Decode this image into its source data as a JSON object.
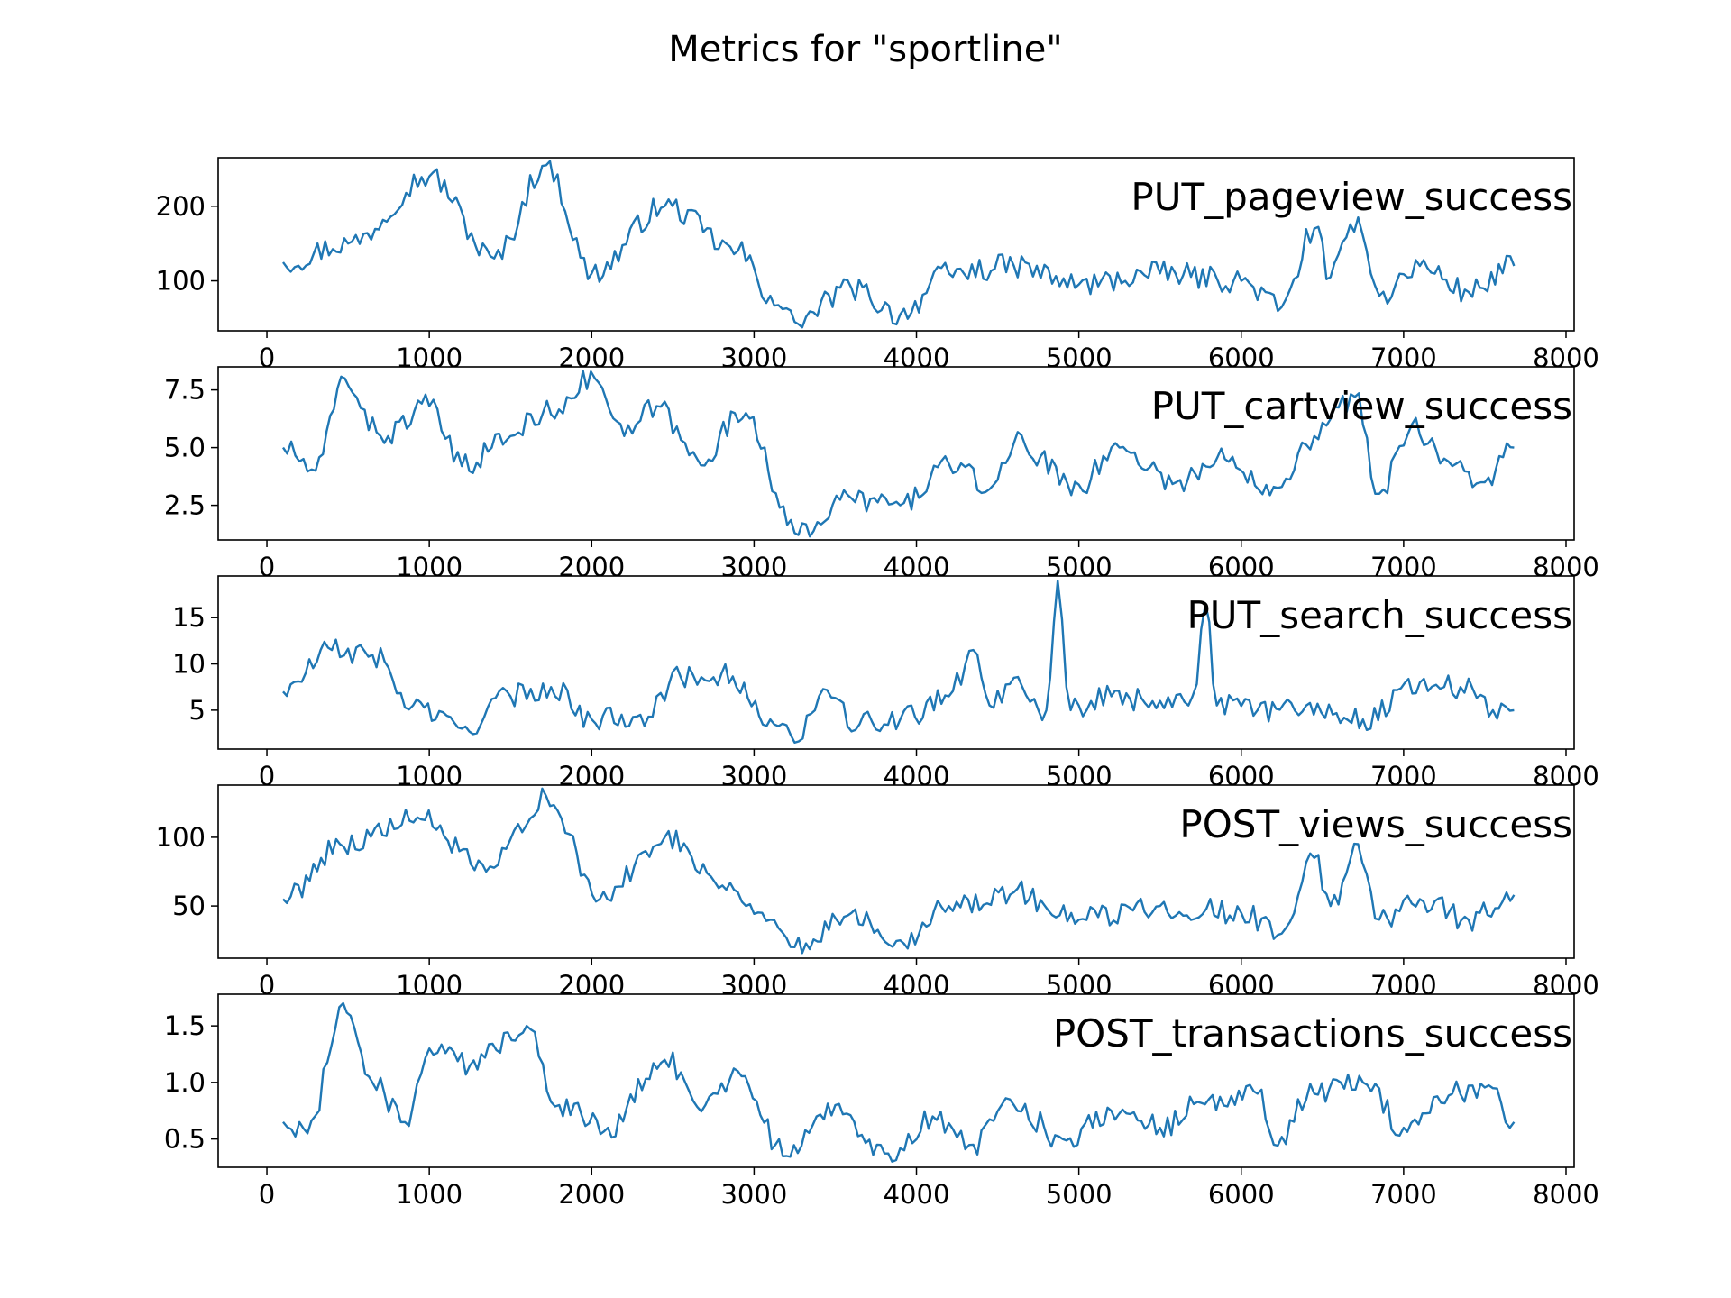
{
  "figure": {
    "title": "Metrics for \"sportline\"",
    "line_color": "#1f77b4",
    "x_ticks": [
      "0",
      "1000",
      "2000",
      "3000",
      "4000",
      "5000",
      "6000",
      "7000",
      "8000"
    ]
  },
  "chart_data": [
    {
      "type": "line",
      "title": "PUT_pageview_success",
      "xlim": [
        -300,
        8050
      ],
      "ylim": [
        33,
        265
      ],
      "y_ticks": [
        {
          "value": 100,
          "label": "100"
        },
        {
          "value": 200,
          "label": "200"
        }
      ],
      "x": [
        100,
        500,
        1000,
        1400,
        1720,
        2000,
        2450,
        2900,
        3100,
        3250,
        3600,
        3900,
        4200,
        4600,
        5000,
        5500,
        6000,
        6250,
        6450,
        6550,
        6720,
        6850,
        7100,
        7400,
        7680
      ],
      "values": [
        125,
        150,
        240,
        130,
        255,
        110,
        200,
        140,
        80,
        45,
        90,
        55,
        110,
        120,
        95,
        110,
        100,
        65,
        170,
        105,
        185,
        80,
        120,
        85,
        120
      ],
      "series": [
        {
          "name": "PUT_pageview_success"
        }
      ]
    },
    {
      "type": "line",
      "title": "PUT_cartview_success",
      "xlim": [
        -300,
        8050
      ],
      "ylim": [
        1.0,
        8.5
      ],
      "y_ticks": [
        {
          "value": 2.5,
          "label": "2.5"
        },
        {
          "value": 5.0,
          "label": "5.0"
        },
        {
          "value": 7.5,
          "label": "7.5"
        }
      ],
      "x": [
        100,
        300,
        480,
        700,
        1000,
        1200,
        1500,
        1700,
        2020,
        2200,
        2400,
        2650,
        2950,
        3250,
        3600,
        3900,
        4200,
        4450,
        4600,
        5000,
        5250,
        5600,
        5900,
        6200,
        6450,
        6700,
        6850,
        7050,
        7300,
        7500,
        7680
      ],
      "values": [
        5.0,
        4.0,
        8.0,
        5.5,
        6.8,
        4.2,
        5.5,
        6.5,
        8.0,
        5.5,
        6.8,
        4.5,
        6.5,
        1.3,
        2.8,
        2.5,
        4.3,
        3.2,
        5.2,
        3.4,
        5.0,
        3.5,
        4.5,
        3.3,
        5.5,
        7.2,
        3.0,
        6.0,
        4.2,
        3.5,
        5.0
      ],
      "series": [
        {
          "name": "PUT_cartview_success"
        }
      ]
    },
    {
      "type": "line",
      "title": "PUT_search_success",
      "xlim": [
        -300,
        8050
      ],
      "ylim": [
        0.8,
        19.5
      ],
      "y_ticks": [
        {
          "value": 5,
          "label": "5"
        },
        {
          "value": 10,
          "label": "10"
        },
        {
          "value": 15,
          "label": "15"
        }
      ],
      "x": [
        100,
        400,
        650,
        900,
        1200,
        1500,
        1750,
        2000,
        2300,
        2550,
        2800,
        3100,
        3250,
        3400,
        3650,
        3900,
        4200,
        4350,
        4450,
        4600,
        4800,
        4870,
        4950,
        5200,
        5500,
        5700,
        5780,
        5850,
        6100,
        6400,
        6750,
        7100,
        7350,
        7550,
        7680
      ],
      "values": [
        7,
        11.5,
        11,
        5.5,
        3,
        6.5,
        7.5,
        4,
        4.5,
        8.5,
        9,
        4,
        1.5,
        6.5,
        3.5,
        4,
        6.5,
        11.5,
        5.5,
        8.5,
        5,
        19,
        5,
        6.5,
        6,
        6.5,
        16.5,
        5.5,
        5,
        5.5,
        4,
        8,
        7.5,
        5,
        5
      ],
      "series": [
        {
          "name": "PUT_search_success"
        }
      ]
    },
    {
      "type": "line",
      "title": "POST_views_success",
      "xlim": [
        -300,
        8050
      ],
      "ylim": [
        12,
        138
      ],
      "y_ticks": [
        {
          "value": 50,
          "label": "50"
        },
        {
          "value": 100,
          "label": "100"
        }
      ],
      "x": [
        100,
        450,
        950,
        1350,
        1720,
        2050,
        2450,
        2900,
        3100,
        3250,
        3600,
        3900,
        4200,
        4600,
        5000,
        5500,
        6000,
        6250,
        6450,
        6550,
        6720,
        6850,
        7100,
        7400,
        7680
      ],
      "values": [
        55,
        95,
        113,
        75,
        130,
        55,
        100,
        60,
        40,
        20,
        45,
        25,
        50,
        60,
        40,
        50,
        45,
        30,
        85,
        50,
        95,
        40,
        55,
        40,
        58
      ],
      "series": [
        {
          "name": "POST_views_success"
        }
      ]
    },
    {
      "type": "line",
      "title": "POST_transactions_success",
      "xlim": [
        -300,
        8050
      ],
      "ylim": [
        0.25,
        1.78
      ],
      "y_ticks": [
        {
          "value": 0.5,
          "label": "0.5"
        },
        {
          "value": 1.0,
          "label": "1.0"
        },
        {
          "value": 1.5,
          "label": "1.5"
        }
      ],
      "x": [
        100,
        250,
        470,
        650,
        850,
        1000,
        1250,
        1600,
        1800,
        2100,
        2450,
        2700,
        2900,
        3200,
        3500,
        3850,
        4100,
        4350,
        4600,
        4900,
        5200,
        5500,
        5800,
        6100,
        6200,
        6450,
        6750,
        7000,
        7300,
        7550,
        7680
      ],
      "values": [
        0.65,
        0.55,
        1.7,
        1.0,
        0.65,
        1.3,
        1.15,
        1.5,
        0.8,
        0.6,
        1.2,
        0.8,
        1.1,
        0.35,
        0.8,
        0.3,
        0.7,
        0.45,
        0.8,
        0.5,
        0.75,
        0.6,
        0.85,
        0.9,
        0.45,
        0.9,
        1.0,
        0.6,
        0.9,
        0.95,
        0.65
      ],
      "series": [
        {
          "name": "POST_transactions_success"
        }
      ]
    }
  ]
}
